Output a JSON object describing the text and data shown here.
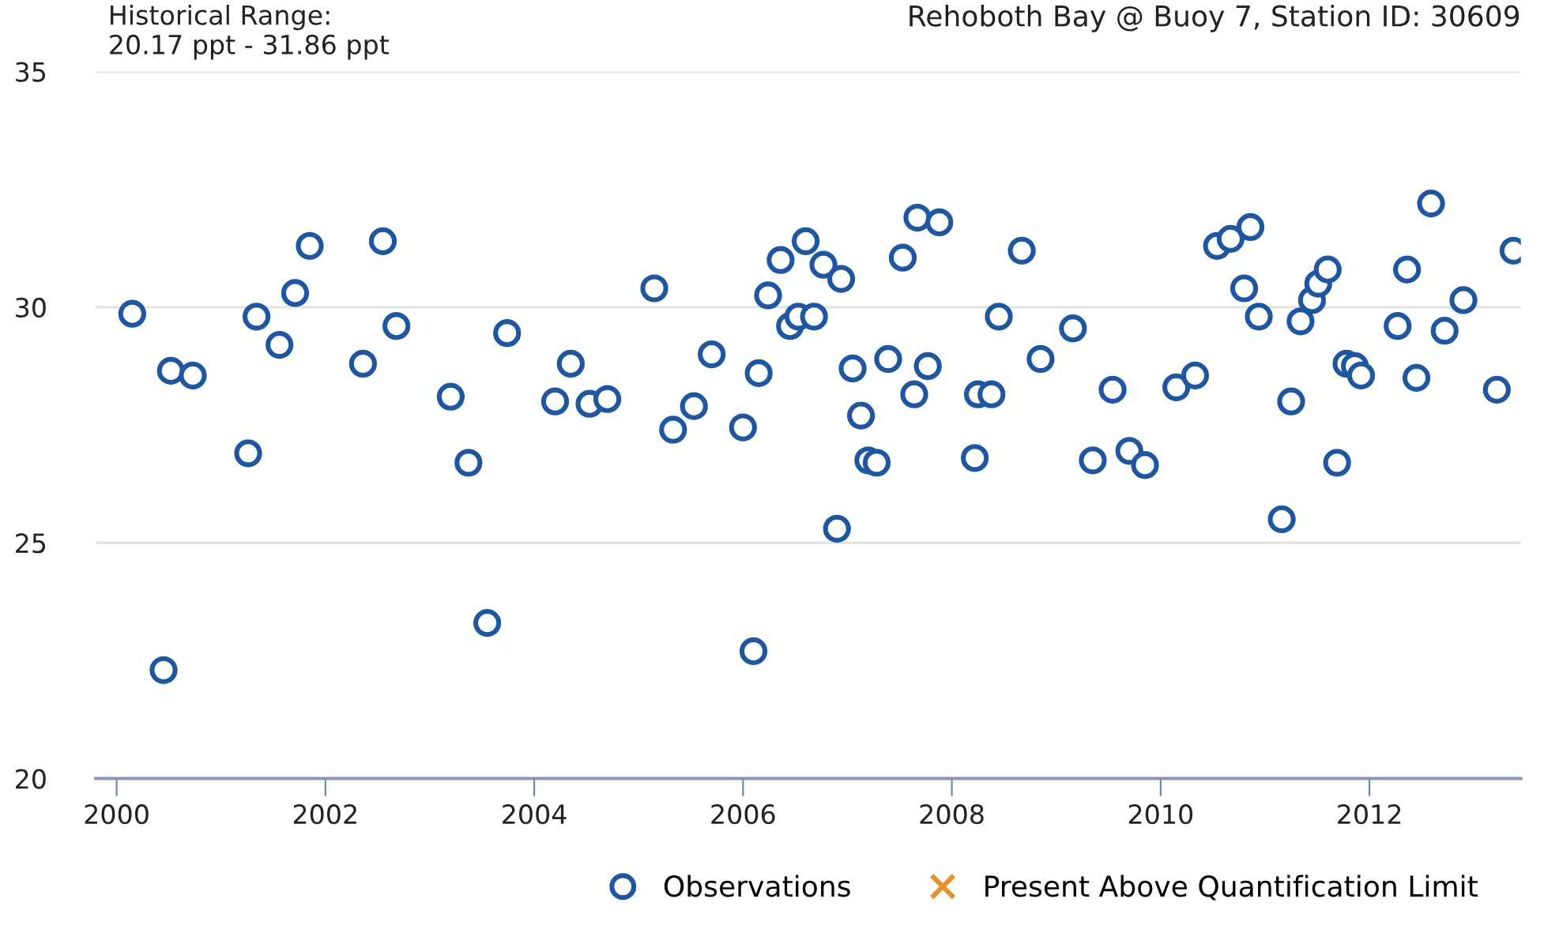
{
  "chart_data": {
    "type": "scatter",
    "title": "Rehoboth Bay @ Buoy 7, Station ID: 30609",
    "annotations": [
      "Historical Range:\n20.17 ppt - 31.86 ppt"
    ],
    "xlim": [
      1999.8,
      2013.45
    ],
    "xticks": [
      2000,
      2002,
      2004,
      2006,
      2008,
      2010,
      2012
    ],
    "ylim": [
      20,
      35
    ],
    "yticks": [
      20,
      25,
      30,
      35
    ],
    "grid": "y",
    "legend": "bottom",
    "series": [
      {
        "name": "Observations",
        "color": "#1f56a0",
        "marker": "circle",
        "x": [
          2000.15,
          2000.45,
          2000.52,
          2000.73,
          2001.26,
          2001.34,
          2001.56,
          2001.71,
          2001.85,
          2002.36,
          2002.55,
          2002.68,
          2003.2,
          2003.37,
          2003.55,
          2003.74,
          2004.2,
          2004.35,
          2004.53,
          2004.7,
          2005.15,
          2005.33,
          2005.53,
          2005.7,
          2006.0,
          2006.1,
          2006.15,
          2006.24,
          2006.36,
          2006.45,
          2006.53,
          2006.6,
          2006.68,
          2006.77,
          2006.9,
          2006.94,
          2007.05,
          2007.13,
          2007.2,
          2007.28,
          2007.39,
          2007.53,
          2007.64,
          2007.67,
          2007.77,
          2007.88,
          2008.22,
          2008.25,
          2008.38,
          2008.45,
          2008.67,
          2008.85,
          2009.16,
          2009.35,
          2009.54,
          2009.7,
          2009.85,
          2010.15,
          2010.33,
          2010.54,
          2010.67,
          2010.8,
          2010.86,
          2010.94,
          2011.16,
          2011.25,
          2011.34,
          2011.45,
          2011.51,
          2011.6,
          2011.69,
          2011.78,
          2011.86,
          2011.92,
          2012.27,
          2012.36,
          2012.45,
          2012.59,
          2012.72,
          2012.9,
          2013.22,
          2013.38
        ],
        "values": [
          29.86,
          22.3,
          28.65,
          28.55,
          26.9,
          29.8,
          29.2,
          30.3,
          31.3,
          28.8,
          31.4,
          29.6,
          28.1,
          26.7,
          23.3,
          29.45,
          28.0,
          28.8,
          27.95,
          28.05,
          30.4,
          27.4,
          27.9,
          29.0,
          27.45,
          22.7,
          28.6,
          30.25,
          31.0,
          29.6,
          29.8,
          31.4,
          29.8,
          30.9,
          25.3,
          30.6,
          28.7,
          27.7,
          26.75,
          26.7,
          28.9,
          31.05,
          28.15,
          31.9,
          28.75,
          31.8,
          26.8,
          28.15,
          28.15,
          29.8,
          31.2,
          28.9,
          29.55,
          26.75,
          28.25,
          26.95,
          26.65,
          28.3,
          28.55,
          31.3,
          31.45,
          30.4,
          31.7,
          29.8,
          25.5,
          28.0,
          29.7,
          30.15,
          30.5,
          30.8,
          26.7,
          28.8,
          28.75,
          28.55,
          29.6,
          30.8,
          28.5,
          32.2,
          29.5,
          30.15,
          28.25,
          31.2
        ]
      },
      {
        "name": "Present Above Quantification Limit",
        "color": "#e8902a",
        "marker": "cross"
      }
    ]
  }
}
